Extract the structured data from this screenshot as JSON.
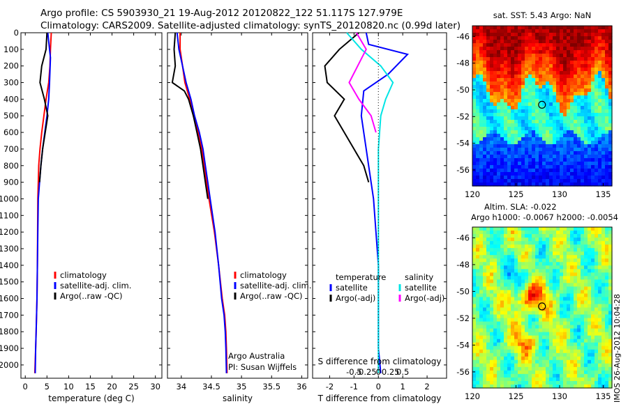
{
  "header": {
    "line1": "Argo profile: CS 5903930_21 19-Aug-2012 20120822_122 51.117S 127.979E",
    "line2": "Climatology: CARS2009. Satellite-adjusted climatology: synTS_20120820.nc (0.99d later)"
  },
  "stamp": "IMOS 26-Aug-2012 10:04:28",
  "colors": {
    "climatology": "#ff0000",
    "satellite": "#0000ff",
    "argo": "#000000",
    "salinity_sat": "#00e5e5",
    "salinity_argo": "#ff00ff"
  },
  "depth_ticks": [
    0,
    100,
    200,
    300,
    400,
    500,
    600,
    700,
    800,
    900,
    1000,
    1100,
    1200,
    1300,
    1400,
    1500,
    1600,
    1700,
    1800,
    1900,
    2000
  ],
  "chart_data": [
    {
      "type": "line",
      "xlabel": "temperature (deg C)",
      "ylabel": "",
      "xlim": [
        -1,
        31.5
      ],
      "ylim": [
        2080,
        0
      ],
      "xticks": [
        0,
        5,
        10,
        15,
        20,
        25,
        30
      ],
      "legend": [
        "climatology",
        "satellite-adj. clim.",
        "Argo(..raw -QC)"
      ],
      "series": [
        {
          "name": "climatology",
          "color": "#ff0000",
          "x": [
            6.0,
            5.8,
            5.7,
            5.4,
            4.8,
            4.3,
            3.8,
            3.4,
            3.1,
            3.0,
            2.9,
            2.85,
            2.8,
            2.7,
            2.6,
            2.5,
            2.4,
            2.2
          ],
          "y": [
            0,
            100,
            200,
            300,
            400,
            500,
            600,
            700,
            800,
            900,
            1000,
            1200,
            1400,
            1600,
            1700,
            1800,
            1900,
            2050
          ]
        },
        {
          "name": "satellite-adj. clim.",
          "color": "#0000ff",
          "x": [
            5.2,
            5.6,
            5.8,
            5.6,
            5.4,
            5.0,
            4.5,
            4.0,
            3.6,
            3.3,
            3.0,
            2.9,
            2.8,
            2.7,
            2.6,
            2.5,
            2.4,
            2.3
          ],
          "y": [
            0,
            100,
            150,
            300,
            400,
            500,
            600,
            700,
            800,
            900,
            1000,
            1200,
            1400,
            1600,
            1700,
            1800,
            1900,
            2050
          ]
        },
        {
          "name": "Argo(..raw -QC)",
          "color": "#000000",
          "x": [
            5.0,
            4.8,
            3.8,
            3.4,
            4.4,
            5.2,
            4.6,
            4.0,
            3.6,
            3.3
          ],
          "y": [
            0,
            100,
            200,
            300,
            400,
            500,
            600,
            700,
            800,
            900
          ]
        }
      ]
    },
    {
      "type": "line",
      "xlabel": "salinity",
      "ylabel": "",
      "xlim": [
        33.77,
        36.1
      ],
      "ylim": [
        2080,
        0
      ],
      "xticks": [
        34,
        34.5,
        35,
        35.5,
        36
      ],
      "xtick_labels": [
        "34",
        "34.5",
        "35",
        "35.5",
        "36"
      ],
      "legend": [
        "climatology",
        "satellite-adj. clim.",
        "Argo(..raw -QC)"
      ],
      "annotations": [
        "Argo Australia",
        "PI: Susan Wijffels"
      ],
      "series": [
        {
          "name": "climatology",
          "color": "#ff0000",
          "x": [
            33.98,
            33.98,
            34.02,
            34.06,
            34.14,
            34.2,
            34.28,
            34.34,
            34.38,
            34.42,
            34.46,
            34.55,
            34.62,
            34.68,
            34.72,
            34.74,
            34.75,
            34.76
          ],
          "y": [
            0,
            100,
            200,
            300,
            400,
            500,
            600,
            700,
            800,
            900,
            1000,
            1200,
            1400,
            1600,
            1700,
            1800,
            1900,
            2050
          ]
        },
        {
          "name": "satellite-adj. clim.",
          "color": "#0000ff",
          "x": [
            33.93,
            33.96,
            34.02,
            34.08,
            34.16,
            34.22,
            34.3,
            34.36,
            34.4,
            34.44,
            34.48,
            34.56,
            34.62,
            34.67,
            34.71,
            34.73,
            34.74,
            34.75
          ],
          "y": [
            0,
            100,
            200,
            300,
            400,
            500,
            600,
            700,
            800,
            900,
            1000,
            1200,
            1400,
            1600,
            1700,
            1800,
            1900,
            2050
          ]
        },
        {
          "name": "Argo(..raw -QC)",
          "color": "#000000",
          "x": [
            33.9,
            33.88,
            33.9,
            33.85,
            34.05,
            34.12,
            34.2,
            34.26,
            34.32,
            34.36,
            34.4,
            34.44
          ],
          "y": [
            0,
            100,
            200,
            300,
            350,
            400,
            500,
            600,
            700,
            800,
            900,
            1000
          ]
        }
      ]
    },
    {
      "type": "line",
      "xlabel": "T difference from climatology",
      "title": "S difference from climatology",
      "ylabel": "",
      "xlim": [
        -2.7,
        2.8
      ],
      "ylim": [
        2080,
        0
      ],
      "xticks": [
        -2,
        -1,
        0,
        1,
        2
      ],
      "secondary_xticks": [
        -0.5,
        -0.25,
        0,
        0.25,
        0.5
      ],
      "legend": [
        "temperature",
        "satellite",
        "Argo(-adj)",
        "salinity",
        "satellite",
        "Argo(-adj)"
      ],
      "series": [
        {
          "name": "temperature satellite",
          "color": "#0000ff",
          "x": [
            -0.5,
            -0.4,
            1.2,
            0.4,
            -0.6,
            -0.7,
            -0.6,
            -0.5,
            -0.4,
            -0.3,
            -0.2,
            -0.1,
            0.0,
            0.0,
            0.0,
            0.0,
            0.0,
            0.1
          ],
          "y": [
            0,
            70,
            130,
            250,
            350,
            500,
            600,
            700,
            800,
            900,
            1000,
            1200,
            1400,
            1600,
            1700,
            1800,
            1900,
            2050
          ]
        },
        {
          "name": "temperature Argo(-adj)",
          "color": "#000000",
          "x": [
            -0.8,
            -1.6,
            -2.2,
            -2.1,
            -1.4,
            -1.8,
            -1.4,
            -1.0,
            -0.6,
            -0.4
          ],
          "y": [
            0,
            100,
            200,
            300,
            400,
            500,
            600,
            700,
            800,
            900
          ]
        },
        {
          "name": "salinity satellite",
          "color": "#00e5e5",
          "x": [
            -1.3,
            -0.7,
            0.1,
            0.6,
            0.3,
            0.1,
            0.05,
            0.0,
            0.0,
            0.0,
            0.0
          ],
          "y": [
            0,
            100,
            200,
            300,
            400,
            500,
            600,
            700,
            1000,
            1500,
            2050
          ]
        },
        {
          "name": "salinity Argo(-adj)",
          "color": "#ff00ff",
          "x": [
            -0.9,
            -0.5,
            -1.2,
            -0.8,
            -0.3,
            -0.1
          ],
          "y": [
            0,
            100,
            300,
            400,
            500,
            600
          ]
        }
      ]
    },
    {
      "type": "heatmap",
      "title": "sat. SST: 5.43 Argo: NaN",
      "xlim": [
        120,
        136
      ],
      "ylim": [
        -57.2,
        -45.2
      ],
      "xticks": [
        120,
        125,
        130,
        135
      ],
      "yticks": [
        -46,
        -48,
        -50,
        -52,
        -54,
        -56
      ],
      "marker": {
        "lon": 127.979,
        "lat": -51.117
      }
    },
    {
      "type": "heatmap",
      "title": "Altim. SLA: -0.022",
      "subtitle": "Argo h1000: -0.0067 h2000: -0.0054",
      "xlim": [
        120,
        136
      ],
      "ylim": [
        -57.2,
        -45.2
      ],
      "xticks": [
        120,
        125,
        130,
        135
      ],
      "yticks": [
        -46,
        -48,
        -50,
        -52,
        -54,
        -56
      ],
      "marker": {
        "lon": 127.979,
        "lat": -51.117
      }
    }
  ]
}
